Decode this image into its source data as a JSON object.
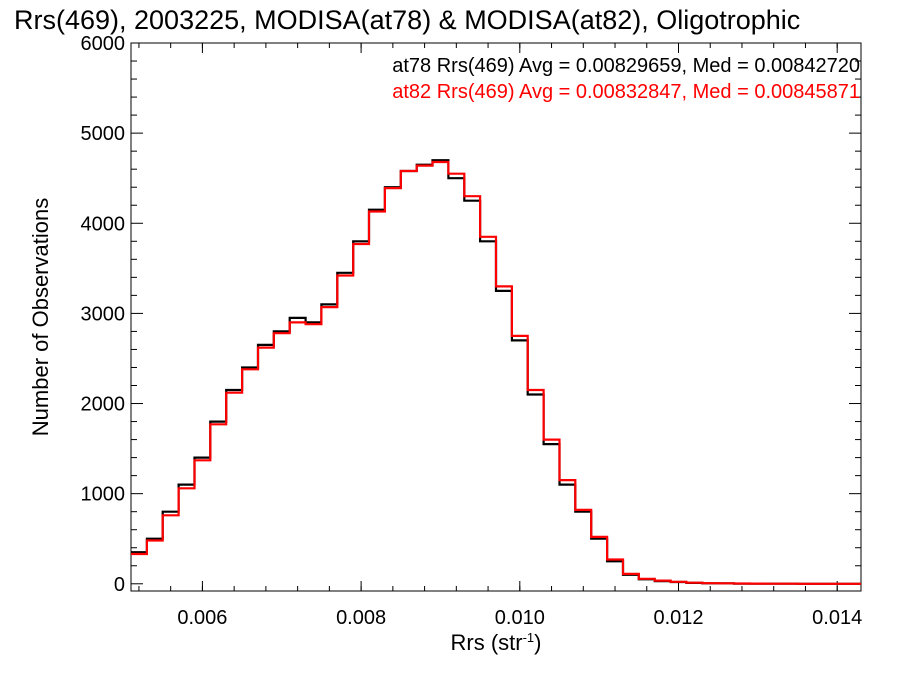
{
  "chart_data": {
    "type": "line",
    "title": "Rrs(469), 2003225, MODISA(at78) & MODISA(at82), Oligotrophic",
    "xlabel_main": "Rrs (str",
    "xlabel_sup": "-1",
    "xlabel_tail": ")",
    "ylabel": "Number of Observations",
    "xlim": [
      0.0051,
      0.0143
    ],
    "ylim": [
      -80,
      6000
    ],
    "x_ticks": [
      0.006,
      0.008,
      0.01,
      0.012,
      0.014
    ],
    "x_tick_labels": [
      "0.006",
      "0.008",
      "0.010",
      "0.012",
      "0.014"
    ],
    "y_ticks": [
      0,
      1000,
      2000,
      3000,
      4000,
      5000,
      6000
    ],
    "y_tick_labels": [
      "0",
      "1000",
      "2000",
      "3000",
      "4000",
      "5000",
      "6000"
    ],
    "grid": false,
    "legend_placement": "top-right",
    "series": [
      {
        "name": "at78",
        "color": "#000000",
        "stats": "at78 Rrs(469) Avg = 0.00829659, Med = 0.00842720",
        "x": [
          0.0051,
          0.0053,
          0.0055,
          0.0057,
          0.0059,
          0.0061,
          0.0063,
          0.0065,
          0.0067,
          0.0069,
          0.0071,
          0.0073,
          0.0075,
          0.0077,
          0.0079,
          0.0081,
          0.0083,
          0.0085,
          0.0087,
          0.0089,
          0.0091,
          0.0093,
          0.0095,
          0.0097,
          0.0099,
          0.0101,
          0.0103,
          0.0105,
          0.0107,
          0.0109,
          0.0111,
          0.0113,
          0.0115,
          0.0117,
          0.0119,
          0.0121,
          0.0123,
          0.0125,
          0.0127,
          0.0129,
          0.0131,
          0.0133,
          0.0135,
          0.0137,
          0.0139,
          0.0141,
          0.0143
        ],
        "y": [
          350,
          500,
          800,
          1100,
          1400,
          1800,
          2150,
          2400,
          2650,
          2800,
          2950,
          2900,
          3100,
          3450,
          3800,
          4150,
          4400,
          4580,
          4650,
          4700,
          4500,
          4250,
          3800,
          3250,
          2700,
          2100,
          1550,
          1100,
          800,
          500,
          250,
          100,
          50,
          30,
          20,
          10,
          5,
          5,
          2,
          2,
          1,
          1,
          0,
          0,
          0,
          0,
          0
        ]
      },
      {
        "name": "at82",
        "color": "#ff0000",
        "stats": "at82 Rrs(469) Avg = 0.00832847, Med = 0.00845871",
        "x": [
          0.0051,
          0.0053,
          0.0055,
          0.0057,
          0.0059,
          0.0061,
          0.0063,
          0.0065,
          0.0067,
          0.0069,
          0.0071,
          0.0073,
          0.0075,
          0.0077,
          0.0079,
          0.0081,
          0.0083,
          0.0085,
          0.0087,
          0.0089,
          0.0091,
          0.0093,
          0.0095,
          0.0097,
          0.0099,
          0.0101,
          0.0103,
          0.0105,
          0.0107,
          0.0109,
          0.0111,
          0.0113,
          0.0115,
          0.0117,
          0.0119,
          0.0121,
          0.0123,
          0.0125,
          0.0127,
          0.0129,
          0.0131,
          0.0133,
          0.0135,
          0.0137,
          0.0139,
          0.0141,
          0.0143
        ],
        "y": [
          330,
          480,
          760,
          1060,
          1370,
          1770,
          2120,
          2380,
          2620,
          2780,
          2900,
          2880,
          3070,
          3420,
          3770,
          4130,
          4390,
          4580,
          4640,
          4680,
          4550,
          4300,
          3850,
          3300,
          2750,
          2150,
          1600,
          1150,
          820,
          520,
          270,
          110,
          55,
          35,
          22,
          12,
          6,
          5,
          3,
          2,
          1,
          1,
          0,
          0,
          0,
          0,
          0
        ]
      }
    ]
  }
}
